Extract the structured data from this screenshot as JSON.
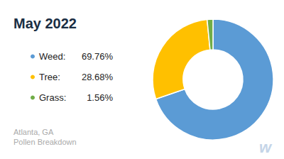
{
  "chart_data": {
    "type": "pie",
    "title": "May 2022",
    "subtitle": [
      "Atlanta, GA",
      "Pollen Breakdown"
    ],
    "annotations": [
      "w"
    ],
    "categories": [
      "Weed:",
      "Tree:",
      "Grass:"
    ],
    "values": [
      69.76,
      28.68,
      1.56
    ],
    "value_labels": [
      "69.76%",
      "28.68%",
      "1.56%"
    ],
    "colors": [
      "#5B9BD5",
      "#FFC000",
      "#70AD47"
    ],
    "legend": "left"
  }
}
